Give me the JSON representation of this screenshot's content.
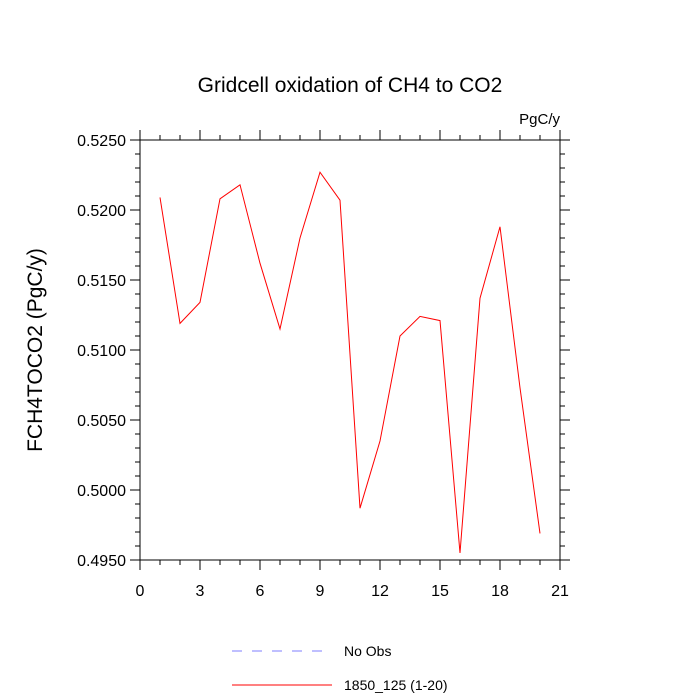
{
  "chart_data": {
    "type": "line",
    "title": "Gridcell oxidation of CH4 to CO2",
    "units_label": "PgC/y",
    "ylabel": "FCH4TOCO2  (PgC/y)",
    "xlabel": "",
    "xlim": [
      0,
      21
    ],
    "ylim": [
      0.495,
      0.525
    ],
    "x_ticks": [
      0,
      3,
      6,
      9,
      12,
      15,
      18,
      21
    ],
    "x_tick_labels": [
      "0",
      "3",
      "6",
      "9",
      "12",
      "15",
      "18",
      "21"
    ],
    "y_ticks": [
      0.495,
      0.5,
      0.505,
      0.51,
      0.515,
      0.52,
      0.525
    ],
    "y_tick_labels": [
      "0.4950",
      "0.5000",
      "0.5050",
      "0.5100",
      "0.5150",
      "0.5200",
      "0.5250"
    ],
    "series": [
      {
        "name": "1850_125 (1-20)",
        "color": "#ff0000",
        "style": "solid",
        "x": [
          1,
          2,
          3,
          4,
          5,
          6,
          7,
          8,
          9,
          10,
          11,
          12,
          13,
          14,
          15,
          16,
          17,
          18,
          19,
          20
        ],
        "values": [
          0.5209,
          0.5119,
          0.5134,
          0.5208,
          0.5218,
          0.5162,
          0.5115,
          0.518,
          0.5227,
          0.5207,
          0.4987,
          0.5035,
          0.511,
          0.5124,
          0.5121,
          0.4955,
          0.5137,
          0.5188,
          0.5073,
          0.4969
        ]
      }
    ],
    "legend": [
      {
        "label": "No Obs",
        "color": "#7f7fff",
        "style": "dashed"
      },
      {
        "label": "1850_125 (1-20)",
        "color": "#ff0000",
        "style": "solid"
      }
    ],
    "legend_position": "bottom"
  }
}
